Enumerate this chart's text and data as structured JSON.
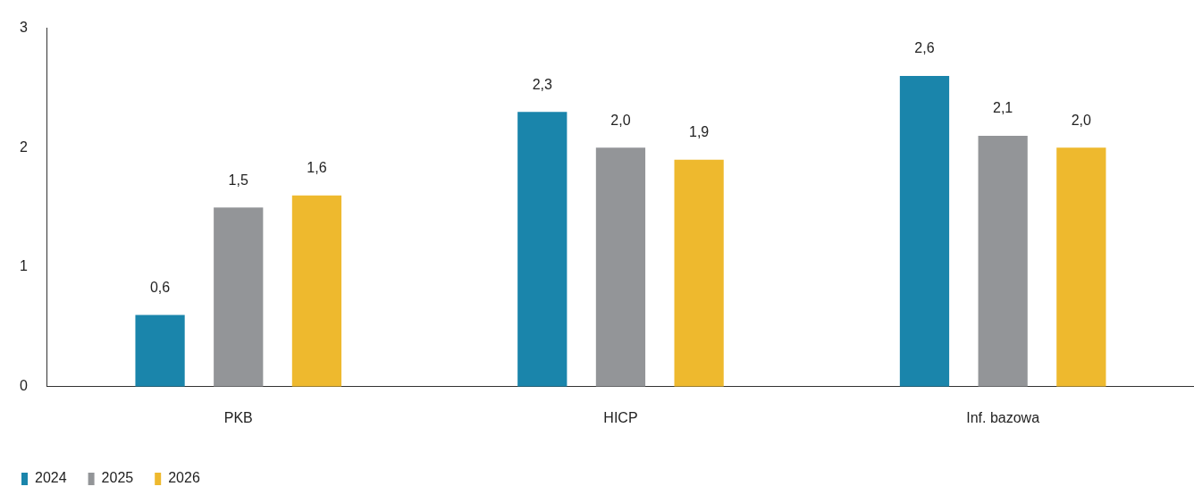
{
  "chart_data": {
    "type": "bar",
    "categories": [
      "PKB",
      "HICP",
      "Inf. bazowa"
    ],
    "series": [
      {
        "name": "2024",
        "color": "#1a85ab",
        "values": [
          0.6,
          2.3,
          2.6
        ],
        "value_labels": [
          "0,6",
          "2,3",
          "2,6"
        ]
      },
      {
        "name": "2025",
        "color": "#939598",
        "values": [
          1.5,
          2.0,
          2.1
        ],
        "value_labels": [
          "1,5",
          "2,0",
          "2,1"
        ]
      },
      {
        "name": "2026",
        "color": "#eeb92e",
        "values": [
          1.6,
          1.9,
          2.0
        ],
        "value_labels": [
          "1,6",
          "1,9",
          "2,0"
        ]
      }
    ],
    "ylim": [
      0,
      3
    ],
    "yticks": [
      0,
      1,
      2,
      3
    ],
    "grid": false,
    "legend": "bottom left"
  }
}
